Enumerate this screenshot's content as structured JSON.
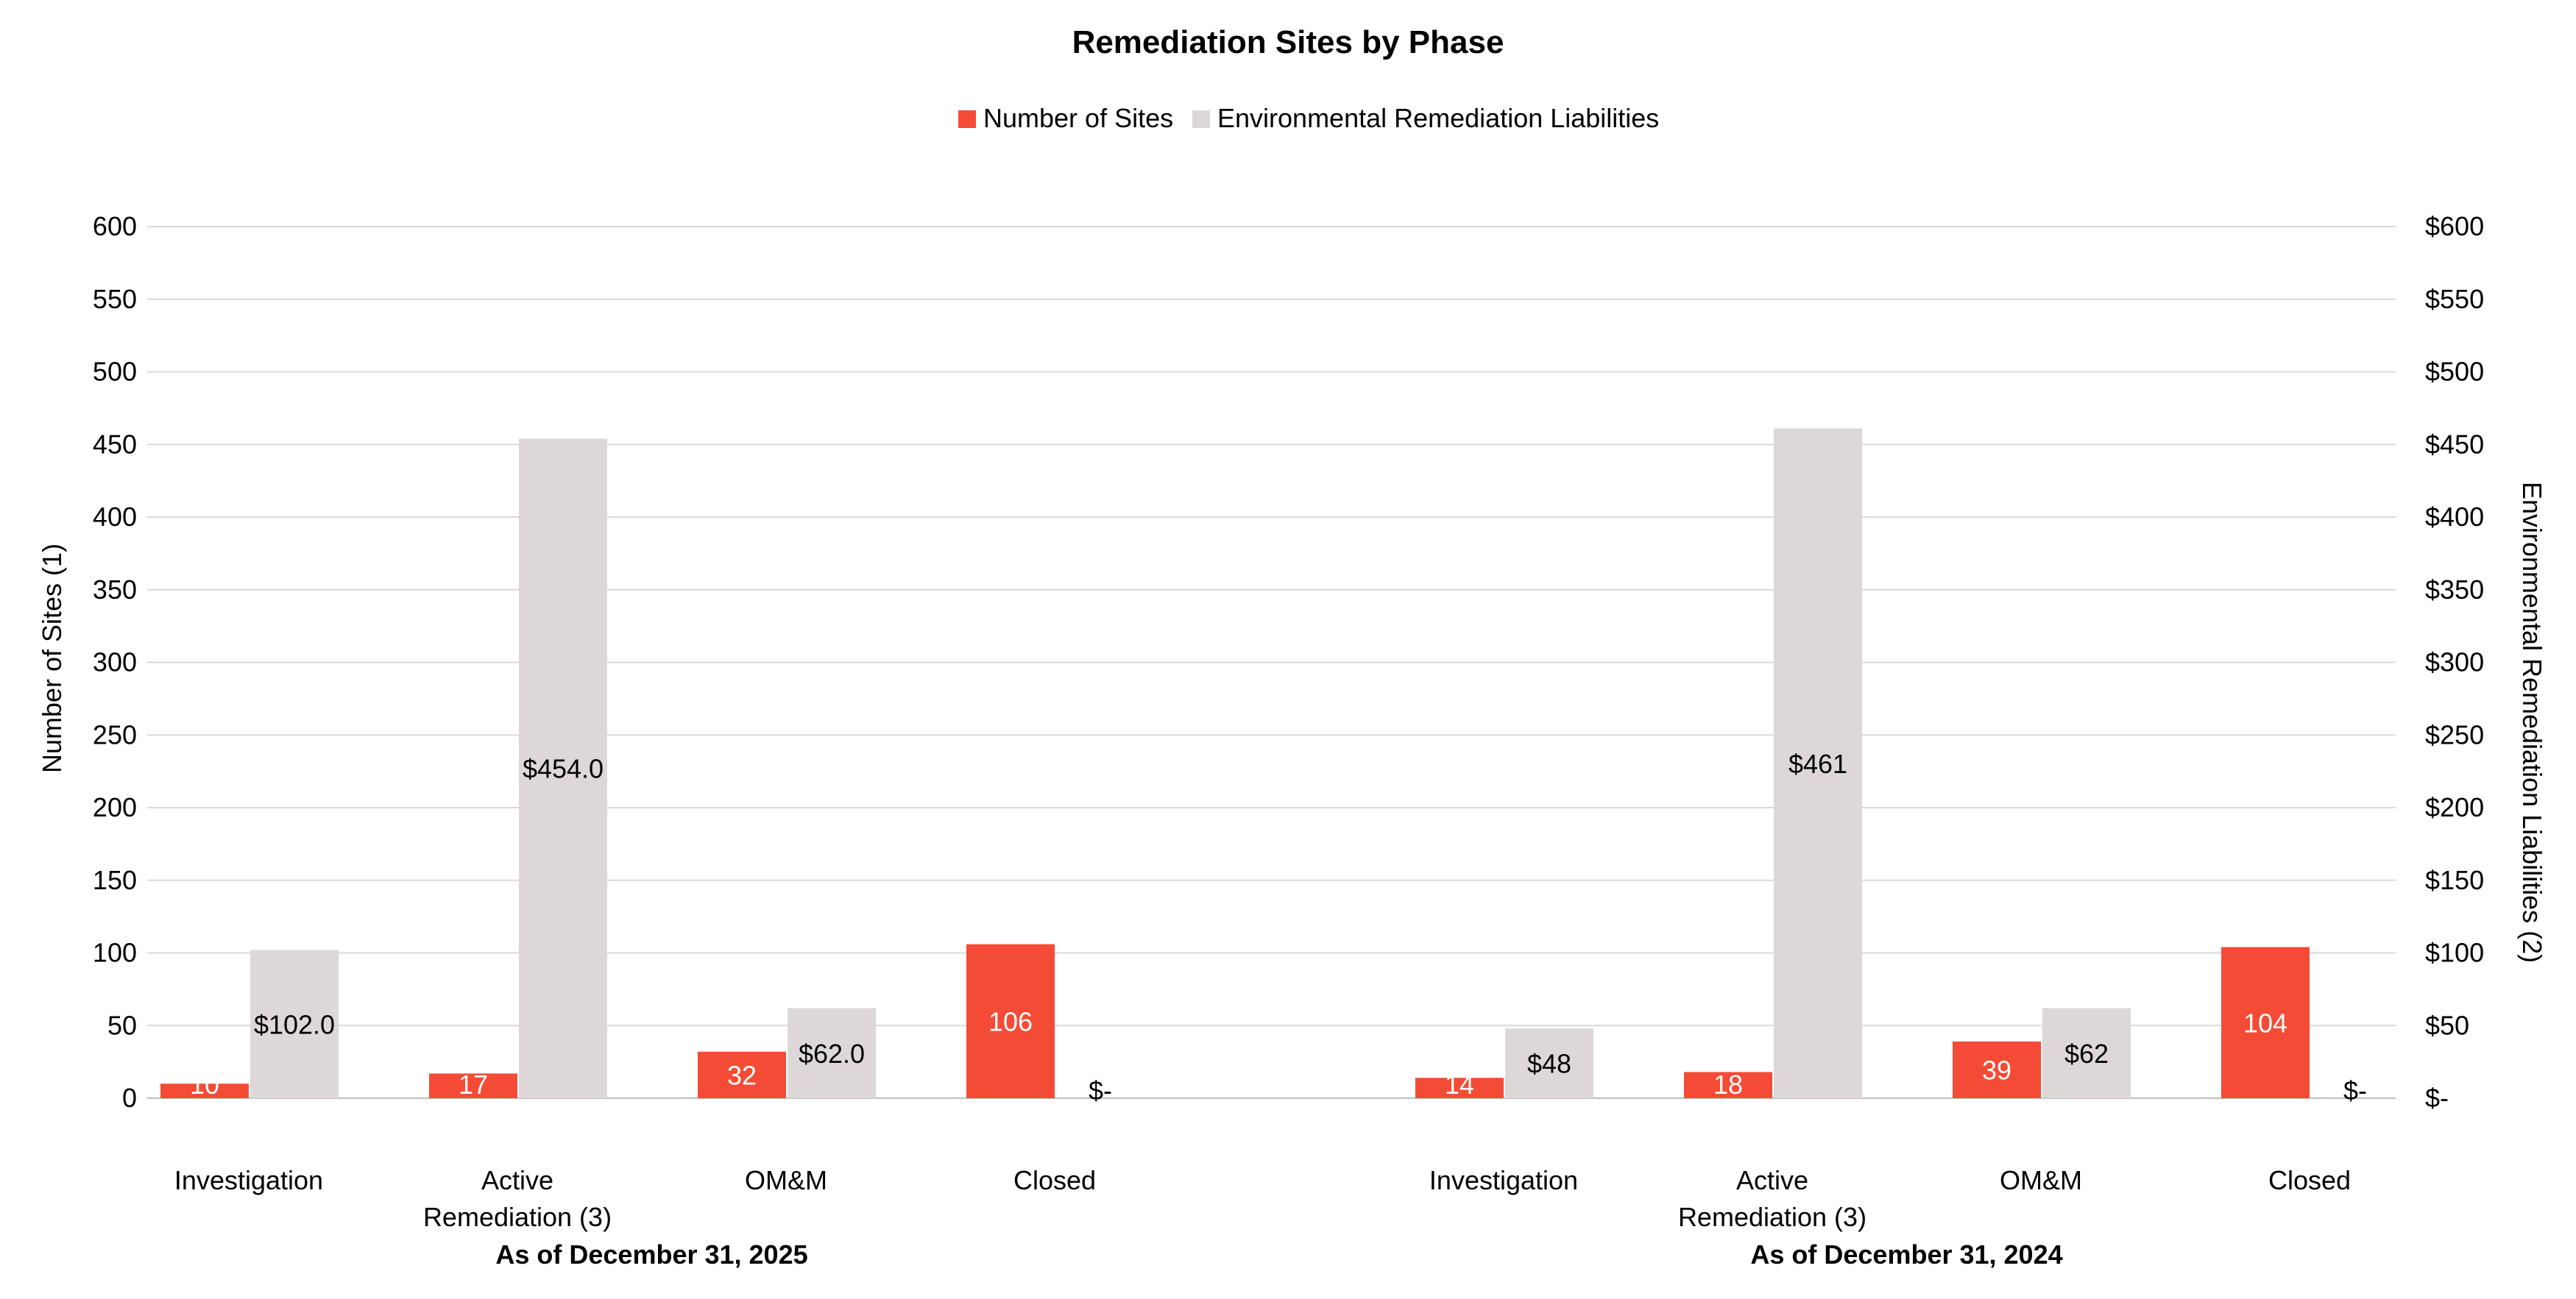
{
  "chart_data": {
    "type": "bar",
    "title": "Remediation Sites by Phase",
    "ylabel": "Number of Sites (1)",
    "y2label": "Environmental Remediation Liabilities (2)",
    "ylim": [
      0,
      600
    ],
    "y2lim": [
      0,
      600
    ],
    "y_ticks": [
      "0",
      "50",
      "100",
      "150",
      "200",
      "250",
      "300",
      "350",
      "400",
      "450",
      "500",
      "550",
      "600"
    ],
    "y2_ticks": [
      "$-",
      "$50",
      "$100",
      "$150",
      "$200",
      "$250",
      "$300",
      "$350",
      "$400",
      "$450",
      "$500",
      "$550",
      "$600"
    ],
    "grid": true,
    "legend_position": "top-center",
    "colors": {
      "sites": "#f44b36",
      "liabilities": "#ddd7d8",
      "grid": "#d9d9d9"
    },
    "groups": [
      {
        "label": "As of December 31, 2025",
        "categories": [
          "Investigation",
          "Active Remediation (3)",
          "OM&M",
          "Closed"
        ],
        "category_lines": [
          [
            "Investigation"
          ],
          [
            "Active",
            "Remediation (3)"
          ],
          [
            "OM&M"
          ],
          [
            "Closed"
          ]
        ],
        "sites": [
          10,
          17,
          32,
          106
        ],
        "sites_labels": [
          "10",
          "17",
          "32",
          "106"
        ],
        "liabilities": [
          102.0,
          454.0,
          62.0,
          0
        ],
        "liabilities_labels": [
          "$102.0",
          "$454.0",
          "$62.0",
          "$-"
        ]
      },
      {
        "label": "As of December 31, 2024",
        "categories": [
          "Investigation",
          "Active Remediation (3)",
          "OM&M",
          "Closed"
        ],
        "category_lines": [
          [
            "Investigation"
          ],
          [
            "Active",
            "Remediation (3)"
          ],
          [
            "OM&M"
          ],
          [
            "Closed"
          ]
        ],
        "sites": [
          14,
          18,
          39,
          104
        ],
        "sites_labels": [
          "14",
          "18",
          "39",
          "104"
        ],
        "liabilities": [
          48,
          461,
          62,
          0
        ],
        "liabilities_labels": [
          "$48",
          "$461",
          "$62",
          "$-"
        ]
      }
    ],
    "series": [
      {
        "name": "Number of Sites",
        "axis": "left",
        "color": "#f44b36"
      },
      {
        "name": "Environmental Remediation Liabilities",
        "axis": "right",
        "color": "#ddd7d8"
      }
    ]
  }
}
